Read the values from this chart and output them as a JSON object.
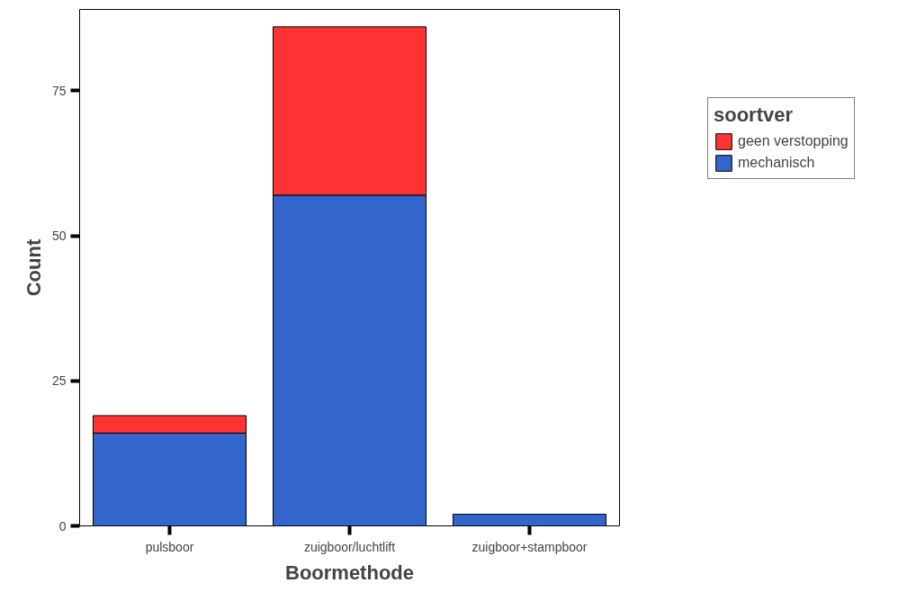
{
  "chart_data": {
    "type": "bar",
    "xlabel": "Boormethode",
    "ylabel": "Count",
    "legend_title": "soortver",
    "categories": [
      "pulsboor",
      "zuigboor/luchtlift",
      "zuigboor+stampboor"
    ],
    "series": [
      {
        "name": "mechanisch",
        "color": "#3366cc",
        "values": [
          16,
          57,
          2
        ]
      },
      {
        "name": "geen verstopping",
        "color": "#ff3333",
        "values": [
          3,
          29,
          0
        ]
      }
    ],
    "stacked": true,
    "ylim": [
      0,
      89
    ],
    "yticks": [
      0,
      25,
      50,
      75
    ],
    "grid": false,
    "legend": "top right"
  }
}
